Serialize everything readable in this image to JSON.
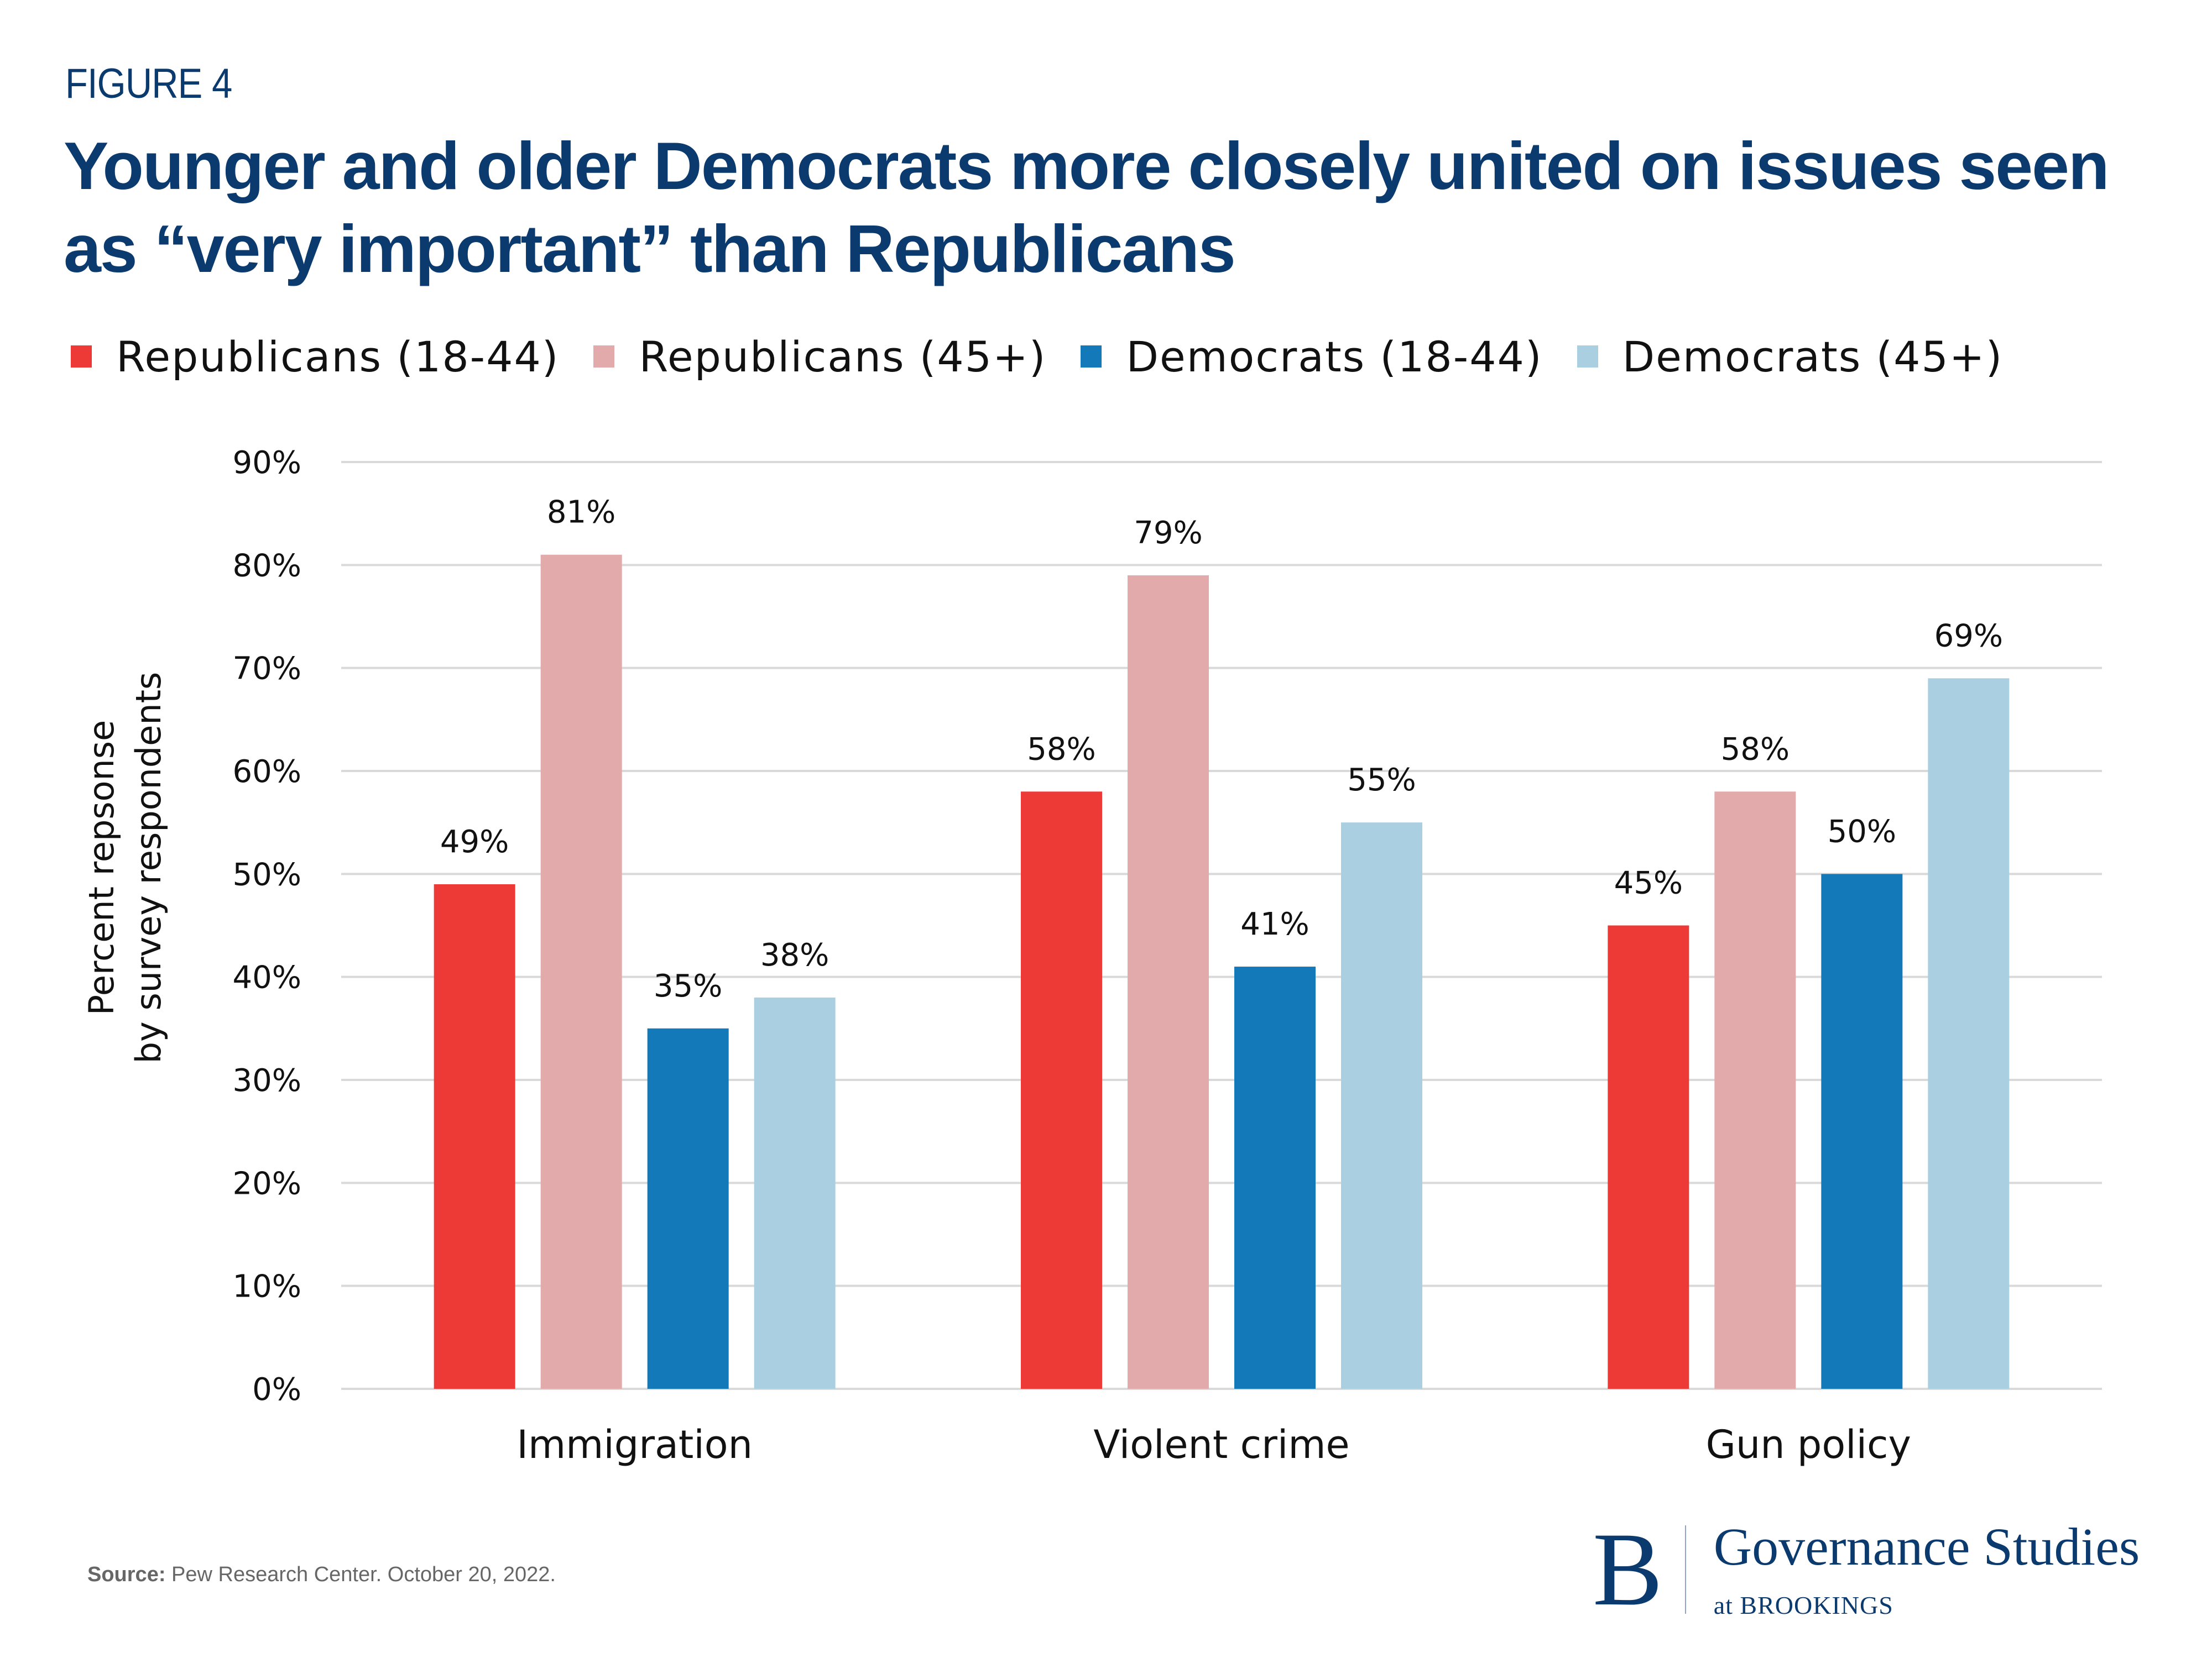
{
  "figure_label": "FIGURE 4",
  "chart_data": {
    "type": "bar",
    "title": "Younger and older Democrats more closely united on issues seen as “very important” than Republicans",
    "xlabel": "",
    "ylabel": "Percent repsonse by survey respondents",
    "ylabel_lines": [
      "Percent repsonse",
      "by survey respondents"
    ],
    "ylim": [
      0,
      90
    ],
    "yticks": [
      0,
      10,
      20,
      30,
      40,
      50,
      60,
      70,
      80,
      90
    ],
    "ytick_labels": [
      "0%",
      "10%",
      "20%",
      "30%",
      "40%",
      "50%",
      "60%",
      "70%",
      "80%",
      "90%"
    ],
    "grid": true,
    "legend_position": "top-left",
    "categories": [
      "Immigration",
      "Violent crime",
      "Gun policy"
    ],
    "series": [
      {
        "name": "Republicans (18-44)",
        "color": "#ee3a37",
        "values": [
          49,
          58,
          45
        ],
        "labels": [
          "49%",
          "58%",
          "45%"
        ]
      },
      {
        "name": "Republicans (45+)",
        "color": "#e2aaab",
        "values": [
          81,
          79,
          58
        ],
        "labels": [
          "81%",
          "79%",
          "58%"
        ]
      },
      {
        "name": "Democrats (18-44)",
        "color": "#1479b9",
        "values": [
          35,
          41,
          50
        ],
        "labels": [
          "35%",
          "41%",
          "50%"
        ]
      },
      {
        "name": "Democrats (45+)",
        "color": "#aacfe1",
        "values": [
          38,
          55,
          69
        ],
        "labels": [
          "38%",
          "55%",
          "69%"
        ]
      }
    ]
  },
  "source": {
    "label": "Source:",
    "text": " Pew Research Center. October 20, 2022."
  },
  "logo": {
    "letter": "B",
    "main": "Governance Studies",
    "sub": "at BROOKINGS"
  }
}
